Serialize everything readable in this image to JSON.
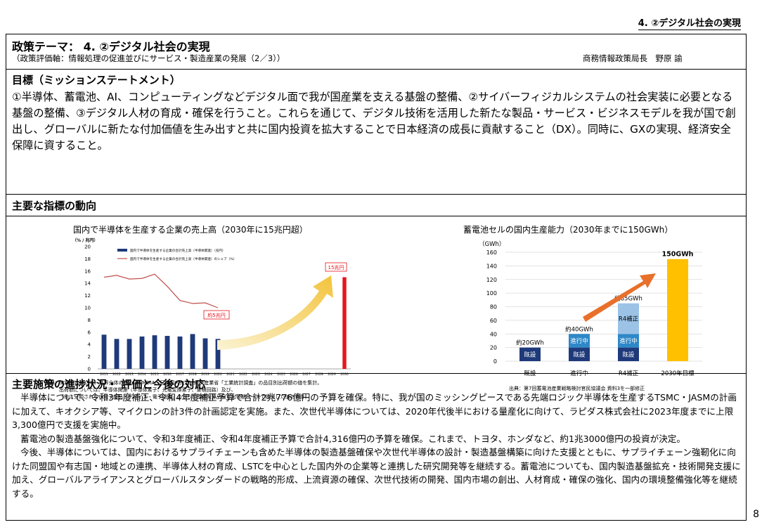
{
  "header": {
    "right_label": "4. ②デジタル社会の実現"
  },
  "theme": {
    "title": "政策テーマ： 4. ②デジタル社会の実現",
    "subtitle": "（政策評価軸：情報処理の促進並びにサービス・製造産業の発展（2／3））",
    "owner": "商務情報政策局長　野原 諭"
  },
  "mission": {
    "title": "目標（ミッションステートメント）",
    "text": "①半導体、蓄電池、AI、コンピューティングなどデジタル面で我が国産業を支える基盤の整備、②サイバーフィジカルシステムの社会実装に必要となる基盤の整備、③デジタル人材の育成・確保を行うこと。これらを通じて、デジタル技術を活用した新たな製品・サービス・ビジネスモデルを我が国で創出し、グローバルに新たな付加価値を生み出すと共に国内投資を拡大することで日本経済の成長に貢献すること（DX）。同時に、GXの実現、経済安全保障に資すること。"
  },
  "indicators": {
    "title": "主要な指標の動向"
  },
  "chart_data": [
    {
      "type": "bar",
      "title": "国内で半導体を生産する企業の売上高（2030年に15兆円超）",
      "ylabel": "（% / 兆円）",
      "ylim": [
        0,
        20
      ],
      "yticks": [
        0,
        2,
        4,
        6,
        8,
        10,
        12,
        14,
        16,
        18,
        20
      ],
      "categories": [
        "2011",
        "2012",
        "2013",
        "2014",
        "2015",
        "2016",
        "2017",
        "2018",
        "2019",
        "2020",
        "2021",
        "2022",
        "2023",
        "2024",
        "2025",
        "2026",
        "2027",
        "2028",
        "2029",
        "2030"
      ],
      "series": [
        {
          "name": "国内で半導体を生産する企業の合計売上高（半導体関連）（兆円）",
          "kind": "bar",
          "color": "#1f3a7a",
          "values": [
            5.6,
            4.9,
            4.9,
            5.3,
            5.5,
            5.4,
            5.3,
            5.7,
            5.0,
            4.9,
            null,
            null,
            null,
            null,
            null,
            null,
            null,
            null,
            null,
            null
          ]
        },
        {
          "name": "国内で半導体を生産する企業の合計売上高（半導体関連）のシェア（%）",
          "kind": "line",
          "color": "#c0504d",
          "values": [
            15.0,
            15.3,
            14.7,
            14.8,
            15.5,
            13.5,
            11.2,
            10.7,
            10.8,
            10.0,
            null,
            null,
            null,
            null,
            null,
            null,
            null,
            null,
            null,
            null
          ]
        },
        {
          "name": "2030年目標",
          "kind": "bar",
          "color": "#e8141b",
          "values": [
            null,
            null,
            null,
            null,
            null,
            null,
            null,
            null,
            null,
            null,
            null,
            null,
            null,
            null,
            null,
            null,
            null,
            null,
            null,
            15
          ]
        }
      ],
      "annotations": [
        "約5兆円",
        "15兆円"
      ],
      "source": [
        "出典：実績分について、世界全体の売上はOMDIA、日本国内売上は経済産業省「工業統計調査」の品目別出荷額の値を集計。",
        "出荷額については、半導体関連（半導体素子、光電変換素子、集積回路）及び、",
        "「他に分類されない電子部品・デバイス・電子回路」のうち半導体関連品目を出荷額ベースで按分した値の合計。"
      ]
    },
    {
      "type": "bar",
      "title": "蓄電池セルの国内生産能力（2030年までに150GWh）",
      "ylabel": "（GWh）",
      "ylim": [
        0,
        160
      ],
      "yticks": [
        0,
        20,
        40,
        60,
        80,
        100,
        120,
        140,
        160
      ],
      "categories": [
        "既設",
        "進行中",
        "R4補正",
        "2030年目標"
      ],
      "stacks": [
        [
          {
            "label": "既設",
            "value": 20,
            "color": "#1f3a7a"
          }
        ],
        [
          {
            "label": "既設",
            "value": 20,
            "color": "#1f3a7a"
          },
          {
            "label": "進行中",
            "value": 20,
            "color": "#2e88c8"
          }
        ],
        [
          {
            "label": "既設",
            "value": 20,
            "color": "#1f3a7a"
          },
          {
            "label": "進行中",
            "value": 20,
            "color": "#2e88c8"
          },
          {
            "label": "R4補正",
            "value": 45,
            "color": "#9cc3e6"
          }
        ],
        [
          {
            "label": "",
            "value": 150,
            "color": "#ffc000"
          }
        ]
      ],
      "totals": [
        "約20GWh",
        "約40GWh",
        "約85GWh",
        "150GWh"
      ],
      "source": [
        "出典：第7回蓄電池産業戦略検討官民協議会 資料3を一部修正"
      ]
    }
  ],
  "progress": {
    "title": "主要施策の進捗状況・ 評価と今後の対応",
    "paragraphs": [
      "半導体について、令和3年度補正、令和4年度補正予算で合計2兆776億円の予算を確保。特に、我が国のミッシングピースである先端ロジック半導体を生産するTSMC・JASMの計画に加えて、キオクシア等、マイクロンの計3件の計画認定を実施。また、次世代半導体については、2020年代後半における量産化に向けて、ラピダス株式会社に2023年度までに上限3,300億円で支援を実施中。",
      "蓄電池の製造基盤強化について、令和3年度補正、令和4年度補正予算で合計4,316億円の予算を確保。これまで、トヨタ、ホンダなど、約1兆3000億円の投資が決定。",
      "今後、半導体については、国内におけるサプライチェーンも含めた半導体の製造基盤確保や次世代半導体の設計・製造基盤構築に向けた支援とともに、サプライチェーン強靭化に向けた同盟国や有志国・地域との連携、半導体人材の育成、LSTCを中心とした国内外の企業等と連携した研究開発等を継続する。蓄電池についても、国内製造基盤拡充・技術開発支援に加え、グローバルアライアンスとグローバルスタンダードの戦略的形成、上流資源の確保、次世代技術の開発、国内市場の創出、人材育成・確保の強化、国内の環境整備強化等を継続する。"
    ]
  },
  "page_number": "8"
}
